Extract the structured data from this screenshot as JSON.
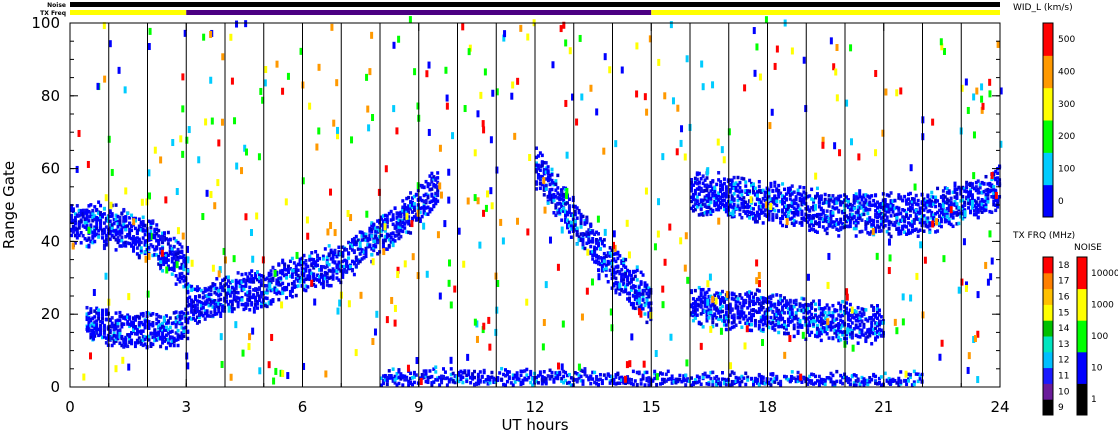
{
  "chart_data": {
    "type": "heatmap",
    "title": "",
    "xlabel": "UT hours",
    "ylabel": "Range Gate",
    "xlim": [
      0,
      24
    ],
    "ylim": [
      0,
      100
    ],
    "x_ticks": [
      "0",
      "3",
      "6",
      "9",
      "12",
      "15",
      "18",
      "21",
      "24"
    ],
    "y_ticks": [
      "0",
      "20",
      "40",
      "60",
      "80",
      "100"
    ],
    "x_tick_values": [
      0,
      3,
      6,
      9,
      12,
      15,
      18,
      21,
      24
    ],
    "y_tick_values": [
      0,
      20,
      40,
      60,
      80,
      100
    ],
    "top_bars": {
      "noise_label": "Noise",
      "freq_label": "TX Freq",
      "noise_color": "#000000",
      "freq_segments": [
        {
          "start": 0,
          "end": 3,
          "color": "#ffff00"
        },
        {
          "start": 3,
          "end": 15,
          "color": "#4b0082"
        },
        {
          "start": 15,
          "end": 24,
          "color": "#ffff00"
        }
      ]
    },
    "scatter_bands": [
      {
        "name": "early band",
        "points": [
          [
            0,
            44
          ],
          [
            1,
            44
          ],
          [
            2,
            40
          ],
          [
            2.6,
            35
          ],
          [
            3,
            31
          ]
        ],
        "width": 10
      },
      {
        "name": "low band",
        "points": [
          [
            0.4,
            17
          ],
          [
            1.5,
            15
          ],
          [
            2.5,
            15
          ],
          [
            3,
            17
          ]
        ],
        "width": 8
      },
      {
        "name": "rising band",
        "points": [
          [
            3,
            22
          ],
          [
            5,
            27
          ],
          [
            7,
            34
          ],
          [
            8.5,
            45
          ],
          [
            9.5,
            55
          ]
        ],
        "width": 9
      },
      {
        "name": "descending band",
        "points": [
          [
            12,
            60
          ],
          [
            13,
            45
          ],
          [
            14,
            32
          ],
          [
            15,
            22
          ]
        ],
        "width": 10
      },
      {
        "name": "late middle band",
        "points": [
          [
            16,
            22
          ],
          [
            18,
            20
          ],
          [
            20,
            17
          ],
          [
            21,
            17
          ]
        ],
        "width": 9
      },
      {
        "name": "late upper band",
        "points": [
          [
            16,
            53
          ],
          [
            18,
            50
          ],
          [
            20,
            47
          ],
          [
            22,
            47
          ],
          [
            23.5,
            52
          ],
          [
            24,
            55
          ]
        ],
        "width": 10
      },
      {
        "name": "near-ground band",
        "points": [
          [
            8,
            2
          ],
          [
            12,
            2
          ],
          [
            16,
            1
          ],
          [
            22,
            1
          ]
        ],
        "width": 3
      }
    ],
    "colorbars": [
      {
        "title": "WID_L (km/s)",
        "ticks": [
          "0",
          "100",
          "200",
          "300",
          "400",
          "500"
        ],
        "colors": [
          "#0000ff",
          "#00ccff",
          "#00ff00",
          "#ffff00",
          "#ff9900",
          "#ff0000"
        ]
      },
      {
        "title": "TX FRQ (MHz)",
        "ticks": [
          "9",
          "10",
          "11",
          "12",
          "13",
          "14",
          "15",
          "16",
          "17",
          "18"
        ],
        "colors": [
          "#000000",
          "#6a1b9a",
          "#1a1aff",
          "#00bfff",
          "#00e5c0",
          "#00c000",
          "#ffff00",
          "#ffc000",
          "#ff7f00",
          "#ff0000"
        ]
      },
      {
        "title": "NOISE",
        "ticks": [
          "1",
          "10",
          "100",
          "1000",
          "10000"
        ],
        "colors": [
          "#000000",
          "#0000ff",
          "#00ff00",
          "#ffff00",
          "#ff0000"
        ]
      }
    ]
  }
}
